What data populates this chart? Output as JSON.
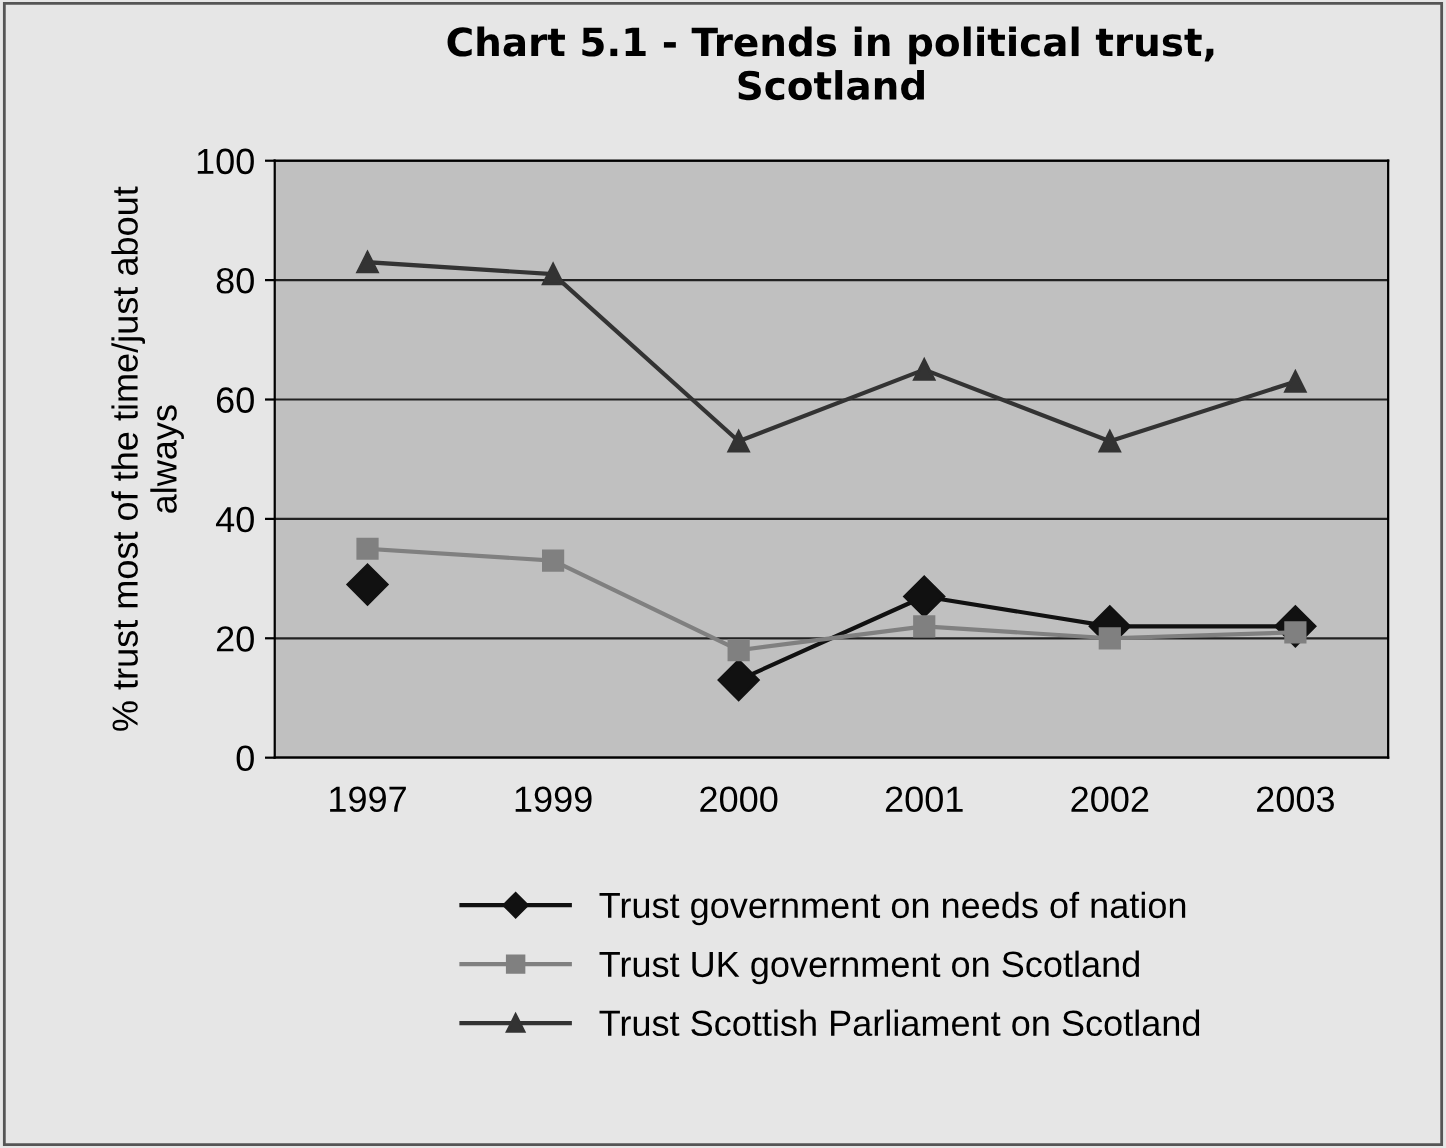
{
  "chart_data": {
    "type": "line",
    "title": "Chart 5.1 - Trends in political trust,\nScotland",
    "ylabel": "% trust most of the time/just about\nalways",
    "categories": [
      "1997",
      "1999",
      "2000",
      "2001",
      "2002",
      "2003"
    ],
    "series": [
      {
        "name": "Trust government on needs of nation",
        "color": "#111111",
        "marker": "diamond",
        "values": [
          29,
          null,
          13,
          27,
          22,
          22
        ]
      },
      {
        "name": "Trust UK government on Scotland",
        "color": "#808080",
        "marker": "square",
        "values": [
          35,
          33,
          18,
          22,
          20,
          21
        ]
      },
      {
        "name": "Trust Scottish Parliament on Scotland",
        "color": "#333333",
        "marker": "triangle",
        "values": [
          83,
          81,
          53,
          65,
          53,
          63
        ]
      }
    ],
    "ylim": [
      0,
      100
    ],
    "yticks": [
      0,
      20,
      40,
      60,
      80,
      100
    ],
    "grid": "y",
    "legend": "bottom",
    "line_style": "solid"
  }
}
